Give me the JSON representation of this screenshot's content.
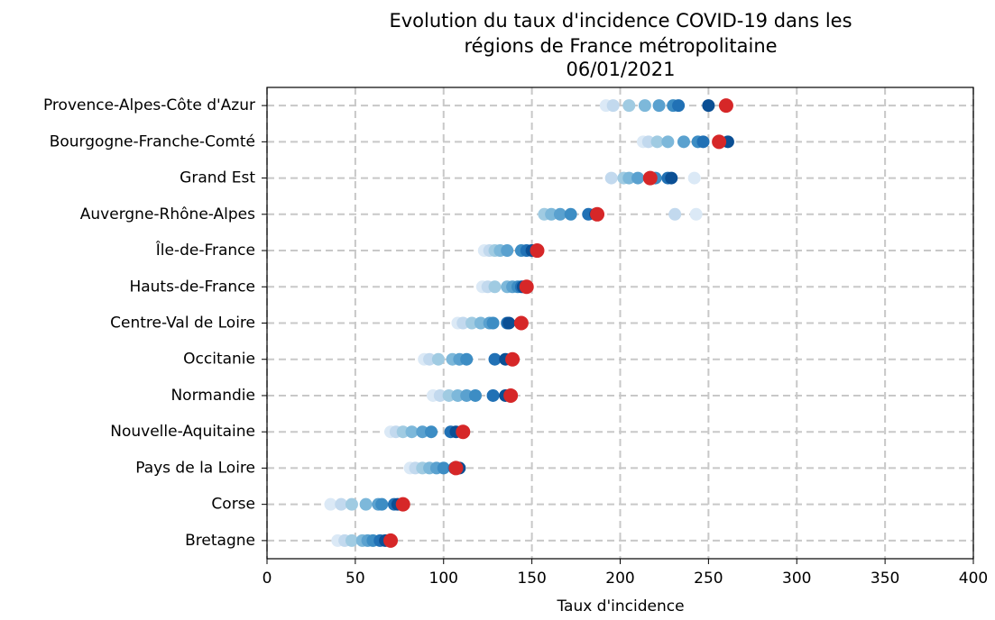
{
  "chart_data": {
    "type": "dot",
    "title": [
      "Evolution du taux d'incidence COVID-19 dans les",
      "régions de France métropolitaine",
      "06/01/2021"
    ],
    "xlabel": "Taux d'incidence",
    "categories": [
      "Provence-Alpes-Côte d'Azur",
      "Bourgogne-Franche-Comté",
      "Grand Est",
      "Auvergne-Rhône-Alpes",
      "Île-de-France",
      "Hauts-de-France",
      "Centre-Val de Loire",
      "Occitanie",
      "Normandie",
      "Nouvelle-Aquitaine",
      "Pays de la Loire",
      "Corse",
      "Bretagne"
    ],
    "series": [
      {
        "color": "#dbe9f6",
        "values": [
          192,
          213,
          242,
          243,
          123,
          122,
          108,
          89,
          94,
          70,
          81,
          36,
          40
        ]
      },
      {
        "color": "#c2d9ee",
        "values": [
          196,
          216,
          195,
          231,
          126,
          125,
          111,
          92,
          98,
          73,
          84,
          42,
          44
        ]
      },
      {
        "color": "#a0cbe2",
        "values": [
          205,
          221,
          202,
          157,
          129,
          129,
          116,
          97,
          103,
          77,
          88,
          48,
          48
        ]
      },
      {
        "color": "#7db8da",
        "values": [
          214,
          227,
          205,
          161,
          132,
          136,
          121,
          105,
          108,
          82,
          92,
          56,
          54
        ]
      },
      {
        "color": "#5aa1cf",
        "values": [
          222,
          236,
          210,
          166,
          136,
          139,
          126,
          109,
          113,
          88,
          96,
          63,
          57
        ]
      },
      {
        "color": "#3d8dc4",
        "values": [
          230,
          244,
          220,
          172,
          144,
          142,
          128,
          113,
          118,
          93,
          100,
          65,
          60
        ]
      },
      {
        "color": "#2171b5",
        "values": [
          233,
          247,
          227,
          182,
          147,
          144,
          136,
          129,
          128,
          104,
          106,
          72,
          64
        ]
      },
      {
        "color": "#0b4f94",
        "values": [
          250,
          261,
          229,
          186,
          150,
          145,
          137,
          135,
          135,
          107,
          109,
          74,
          67
        ]
      },
      {
        "color": "#d62728",
        "values": [
          260,
          256,
          217,
          187,
          153,
          147,
          144,
          139,
          138,
          111,
          107,
          77,
          70
        ]
      }
    ],
    "xlim": [
      0,
      400
    ],
    "xticks": [
      0,
      50,
      100,
      150,
      200,
      250,
      300,
      350,
      400
    ],
    "grid": true
  }
}
